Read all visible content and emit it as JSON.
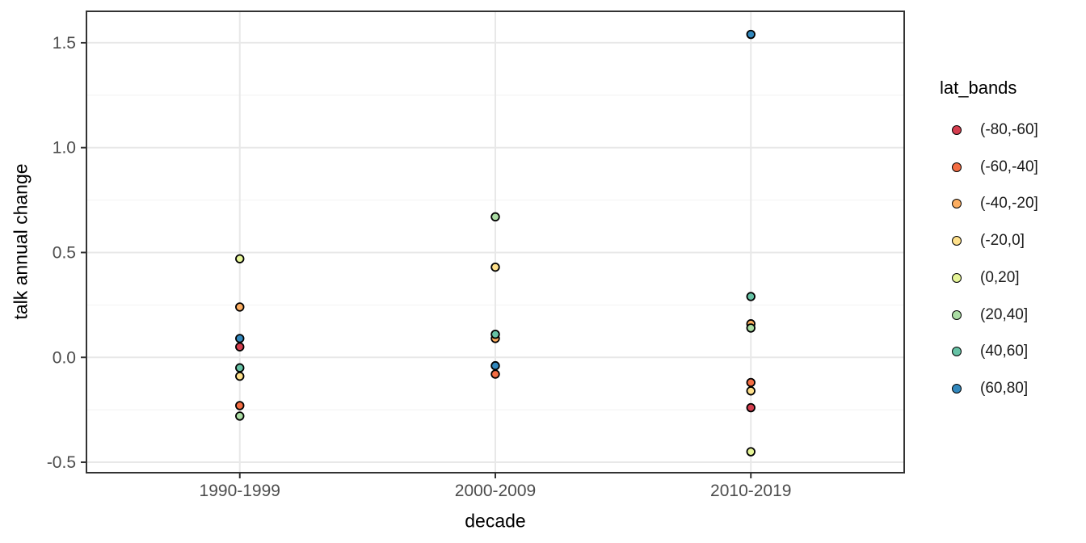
{
  "chart_data": {
    "type": "scatter",
    "title": "",
    "xlabel": "decade",
    "ylabel": "talk annual change",
    "legend_title": "lat_bands",
    "legend_position": "right",
    "grid": true,
    "categories": [
      "1990-1999",
      "2000-2009",
      "2010-2019"
    ],
    "ylim": [
      -0.55,
      1.65
    ],
    "yticks": [
      -0.5,
      0.0,
      0.5,
      1.0,
      1.5
    ],
    "ytick_labels": [
      "-0.5",
      "0.0",
      "0.5",
      "1.0",
      "1.5"
    ],
    "yticks_minor": [
      -0.25,
      0.25,
      0.75,
      1.25
    ],
    "marker": "filled-circle-black-outline",
    "series": [
      {
        "name": "(-80,-60]",
        "color": "#D53E4F",
        "values": [
          0.05,
          null,
          -0.24
        ]
      },
      {
        "name": "(-60,-40]",
        "color": "#F46D43",
        "values": [
          -0.23,
          -0.08,
          -0.12
        ]
      },
      {
        "name": "(-40,-20]",
        "color": "#FDAE61",
        "values": [
          0.24,
          0.09,
          0.16
        ]
      },
      {
        "name": "(-20,0]",
        "color": "#FEE08B",
        "values": [
          -0.09,
          0.43,
          -0.16
        ]
      },
      {
        "name": "(0,20]",
        "color": "#E6F598",
        "values": [
          0.47,
          null,
          -0.45
        ]
      },
      {
        "name": "(20,40]",
        "color": "#ABDDA4",
        "values": [
          -0.28,
          0.67,
          0.14
        ]
      },
      {
        "name": "(40,60]",
        "color": "#66C2A5",
        "values": [
          -0.05,
          0.11,
          0.29
        ]
      },
      {
        "name": "(60,80]",
        "color": "#3288BD",
        "values": [
          0.09,
          -0.04,
          1.54
        ]
      }
    ],
    "style": {
      "panel_border": "#333333",
      "grid_major": "#e8e8e8",
      "grid_minor": "#f2f2f2",
      "tick_text": "#4d4d4d"
    }
  }
}
